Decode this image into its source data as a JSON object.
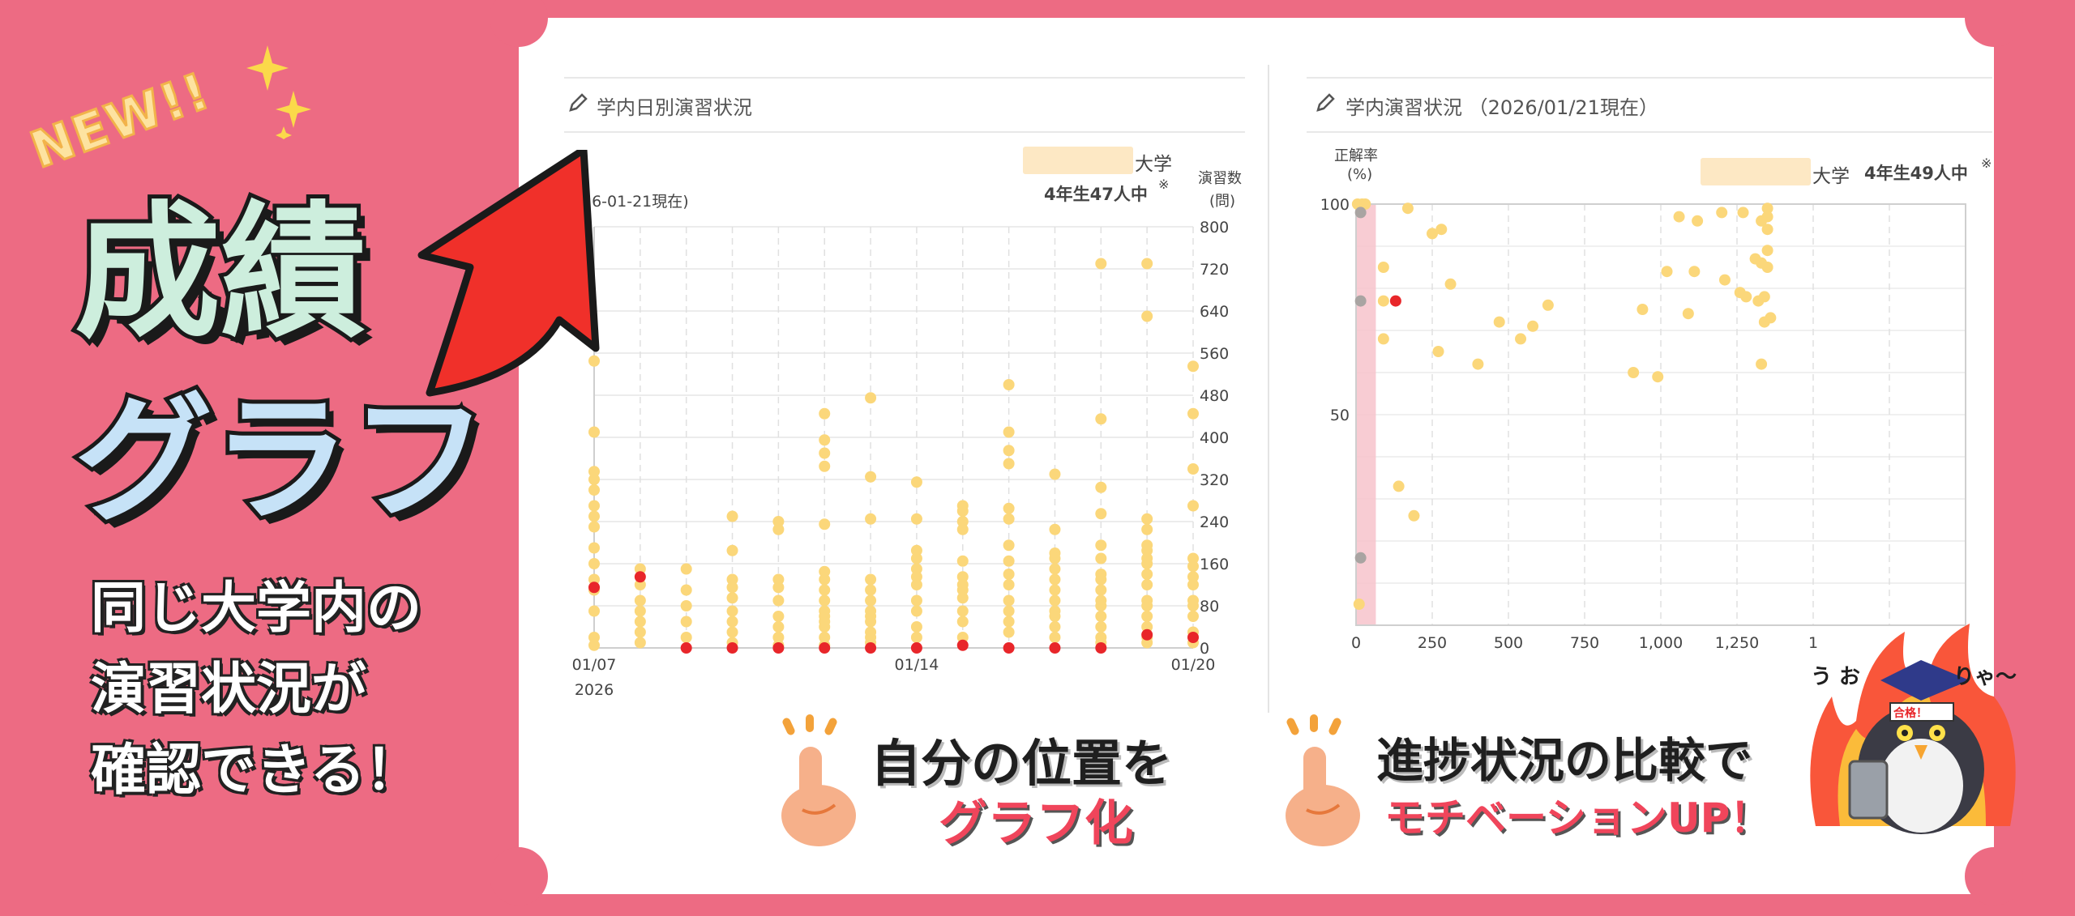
{
  "banner": {
    "badge": "NEW!!",
    "title_line1": "成績",
    "title_line2": "グラフ",
    "description_lines": [
      "同じ大学内の",
      "演習状況が",
      "確認できる！"
    ],
    "promo_left_line1": "自分の位置を",
    "promo_left_line2": "グラフ化",
    "promo_right_line1": "進捗状況の比較で",
    "promo_right_line2": "モチベーションUP！",
    "mascot_text_left": "う お",
    "mascot_text_right": "りゃ〜",
    "mascot_headband": "合格！"
  },
  "left_panel": {
    "title": "学内日別演習状況",
    "date_note": "26-01-21現在)",
    "university_suffix": "大学",
    "cohort_text": "4年生47人中",
    "footnote_mark": "※",
    "y_axis_title_line1": "演習数",
    "y_axis_title_line2": "(問)"
  },
  "right_panel": {
    "title": "学内演習状況 （2026/01/21現在）",
    "university_suffix": "大学",
    "cohort_text": "4年生49人中",
    "footnote_mark": "※",
    "y_axis_title_line1": "正解率",
    "y_axis_title_line2": "(%)"
  },
  "colors": {
    "background": "#ed6b83",
    "dot_others": "#fbd77a",
    "dot_self": "#e8262a",
    "highlight_band": "#f7c3cb"
  },
  "chart_data": [
    {
      "type": "scatter",
      "title": "学内日別演習状況",
      "xlabel": "",
      "ylabel": "演習数 (問)",
      "ylim": [
        0,
        800
      ],
      "y_ticks": [
        "0",
        "80",
        "160",
        "240",
        "320",
        "400",
        "480",
        "560",
        "640",
        "720",
        "800"
      ],
      "x_tick_labels": [
        {
          "date": "01/07",
          "label": "01/07"
        },
        {
          "date": "01/14",
          "label": "01/14"
        },
        {
          "date": "01/20",
          "label": "01/20"
        }
      ],
      "x_year_label": "2026",
      "dates": [
        "01/07",
        "01/08",
        "01/09",
        "01/10",
        "01/11",
        "01/12",
        "01/13",
        "01/14",
        "01/15",
        "01/16",
        "01/17",
        "01/18",
        "01/19",
        "01/20"
      ],
      "series": [
        {
          "values_by_day": [
            [
              545,
              410,
              335,
              320,
              300,
              270,
              250,
              230,
              190,
              160,
              130,
              110,
              70,
              20,
              5
            ],
            [
              150,
              120,
              90,
              70,
              50,
              30,
              10
            ],
            [
              150,
              110,
              80,
              50,
              20
            ],
            [
              250,
              185,
              130,
              115,
              95,
              70,
              50,
              30,
              10
            ],
            [
              240,
              225,
              130,
              115,
              90,
              60,
              40,
              20,
              5
            ],
            [
              445,
              395,
              370,
              345,
              235,
              145,
              130,
              110,
              90,
              70,
              60,
              50,
              40,
              20,
              5
            ],
            [
              475,
              325,
              245,
              130,
              110,
              90,
              70,
              60,
              50,
              30,
              20,
              10
            ],
            [
              315,
              245,
              185,
              170,
              150,
              135,
              120,
              90,
              70,
              40,
              20
            ],
            [
              270,
              260,
              240,
              225,
              165,
              135,
              120,
              110,
              95,
              70,
              50,
              20
            ],
            [
              500,
              410,
              375,
              350,
              265,
              245,
              195,
              165,
              140,
              120,
              90,
              70,
              50,
              30
            ],
            [
              330,
              225,
              180,
              170,
              150,
              130,
              110,
              90,
              70,
              60,
              40,
              20
            ],
            [
              730,
              435,
              305,
              255,
              195,
              170,
              140,
              130,
              110,
              90,
              80,
              60,
              40,
              20,
              10
            ],
            [
              730,
              630,
              245,
              225,
              195,
              185,
              170,
              160,
              140,
              120,
              90,
              80,
              60,
              40,
              20,
              10
            ],
            [
              535,
              445,
              340,
              270,
              170,
              155,
              135,
              120,
              90,
              80,
              60,
              30,
              10
            ]
          ]
        },
        {
          "values_by_day": [
            [
              115
            ],
            [
              135
            ],
            [
              0
            ],
            [
              0
            ],
            [
              0
            ],
            [
              0
            ],
            [
              0
            ],
            [
              0
            ],
            [
              5
            ],
            [
              0
            ],
            [
              0
            ],
            [
              0
            ],
            [
              25
            ],
            [
              20
            ]
          ]
        }
      ]
    },
    {
      "type": "scatter",
      "title": "学内演習状況 （2026/01/21現在）",
      "xlabel": "",
      "ylabel": "正解率 (%)",
      "ylim": [
        0,
        100
      ],
      "xlim": [
        0,
        2000
      ],
      "y_ticks": [
        "100",
        "50"
      ],
      "x_ticks": [
        "0",
        "250",
        "500",
        "750",
        "1,000",
        "1,250",
        "1"
      ],
      "highlight_band": [
        0,
        65
      ],
      "series": [
        {
          "points": [
            [
              5,
              100
            ],
            [
              20,
              100
            ],
            [
              30,
              100
            ],
            [
              90,
              85
            ],
            [
              90,
              77
            ],
            [
              90,
              68
            ],
            [
              170,
              99
            ],
            [
              250,
              93
            ],
            [
              280,
              94
            ],
            [
              270,
              65
            ],
            [
              310,
              81
            ],
            [
              400,
              62
            ],
            [
              470,
              72
            ],
            [
              540,
              68
            ],
            [
              580,
              71
            ],
            [
              630,
              76
            ],
            [
              910,
              60
            ],
            [
              940,
              75
            ],
            [
              990,
              59
            ],
            [
              1020,
              84
            ],
            [
              1060,
              97
            ],
            [
              1090,
              74
            ],
            [
              1110,
              84
            ],
            [
              1120,
              96
            ],
            [
              1200,
              98
            ],
            [
              1210,
              82
            ],
            [
              1260,
              79
            ],
            [
              1270,
              98
            ],
            [
              1280,
              78
            ],
            [
              1310,
              87
            ],
            [
              1320,
              77
            ],
            [
              1330,
              86
            ],
            [
              1330,
              62
            ],
            [
              1330,
              96
            ],
            [
              1340,
              78
            ],
            [
              1340,
              72
            ],
            [
              1350,
              99
            ],
            [
              1350,
              97
            ],
            [
              1350,
              94
            ],
            [
              1350,
              89
            ],
            [
              1350,
              85
            ],
            [
              1360,
              73
            ],
            [
              140,
              33
            ],
            [
              190,
              26
            ],
            [
              10,
              5
            ]
          ]
        },
        {
          "points": [
            [
              130,
              77
            ]
          ]
        },
        {
          "points": [
            [
              15,
              98
            ],
            [
              15,
              77
            ],
            [
              15,
              16
            ]
          ]
        }
      ]
    }
  ]
}
